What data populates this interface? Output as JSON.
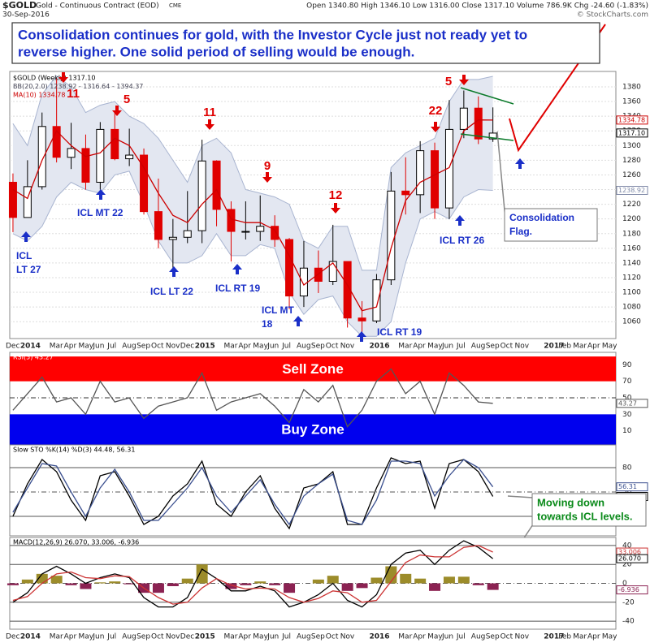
{
  "header": {
    "symbol": "$GOLD",
    "name": "Gold - Continuous Contract (EOD)",
    "exchange": "CME",
    "date": "30-Sep-2016",
    "quote": "Open 1340.80  High 1346.10  Low 1316.00  Close 1317.10  Volume 786.9K  Chg -24.60 (-1.83%)",
    "source": "© StockCharts.com"
  },
  "note": [
    "Consolidation continues for gold, with the Investor Cycle just not ready yet to",
    "reverse higher.  One solid period of selling would be enough."
  ],
  "chart_data": [
    {
      "type": "candlestick",
      "legend": [
        "$GOLD (Weekly) 1317.10",
        "BB(20,2.0) 1238.92 - 1316.64 - 1394.37",
        "MA(10) 1334.78"
      ],
      "categories": [
        "Dec",
        "2014",
        null,
        "Mar",
        "Apr",
        "May",
        "Jun",
        "Jul",
        "Aug",
        "Sep",
        "Oct",
        "Nov",
        "Dec",
        "2015",
        null,
        "Mar",
        "Apr",
        "May",
        "Jun",
        "Jul",
        "Aug",
        "Sep",
        "Oct",
        "Nov",
        null,
        "2016",
        null,
        "Mar",
        "Apr",
        "May",
        "Jun",
        "Jul",
        "Aug",
        "Sep",
        "Oct",
        "Nov",
        null,
        "2017",
        "Feb",
        "Mar",
        "Apr",
        "May"
      ],
      "open": [
        1250,
        1202,
        1244,
        1326,
        1284,
        1296,
        1250,
        1322,
        1282,
        1287,
        1210,
        1172,
        1175,
        1184,
        1279,
        1213,
        1183,
        1183,
        1190,
        1172,
        1095,
        1133,
        1115,
        1142,
        1065,
        1061,
        1117,
        1238,
        1233,
        1293,
        1215,
        1322,
        1351,
        1309,
        null,
        null,
        null,
        null,
        null,
        null,
        null,
        null
      ],
      "high": [
        1262,
        1280,
        1345,
        1392,
        1331,
        1315,
        1332,
        1346,
        1323,
        1296,
        1255,
        1200,
        1238,
        1308,
        1280,
        1224,
        1224,
        1232,
        1205,
        1174,
        1170,
        1157,
        1192,
        1142,
        1088,
        1125,
        1264,
        1284,
        1306,
        1304,
        1362,
        1375,
        1367,
        1352,
        null,
        null,
        null,
        null,
        null,
        null,
        null,
        null
      ],
      "low": [
        1182,
        1202,
        1240,
        1277,
        1268,
        1240,
        1240,
        1280,
        1272,
        1206,
        1160,
        1131,
        1167,
        1167,
        1190,
        1142,
        1172,
        1170,
        1162,
        1077,
        1080,
        1099,
        1110,
        1052,
        1046,
        1058,
        1110,
        1206,
        1208,
        1200,
        1200,
        1310,
        1302,
        1305,
        null,
        null,
        null,
        null,
        null,
        null,
        null,
        null
      ],
      "close": [
        1202,
        1244,
        1326,
        1284,
        1296,
        1250,
        1322,
        1282,
        1287,
        1210,
        1172,
        1175,
        1184,
        1279,
        1213,
        1183,
        1183,
        1190,
        1172,
        1095,
        1133,
        1115,
        1142,
        1065,
        1061,
        1117,
        1238,
        1233,
        1293,
        1215,
        1322,
        1351,
        1309,
        1317,
        null,
        null,
        null,
        null,
        null,
        null,
        null,
        null
      ],
      "up_color": "#000000",
      "down_color": "#e00000",
      "ma": {
        "color": "#cc0000",
        "values": [
          1240,
          1228,
          1280,
          1320,
          1300,
          1285,
          1290,
          1310,
          1300,
          1270,
          1235,
          1205,
          1195,
          1220,
          1240,
          1200,
          1195,
          1195,
          1185,
          1150,
          1110,
          1125,
          1140,
          1110,
          1075,
          1080,
          1160,
          1225,
          1250,
          1260,
          1270,
          1320,
          1335,
          1334.78,
          null,
          null,
          null,
          null,
          null,
          null,
          null,
          null
        ]
      },
      "bb_upper": {
        "color": "#a8b4d0",
        "values": [
          1330,
          1300,
          1370,
          1395,
          1380,
          1345,
          1355,
          1360,
          1340,
          1330,
          1310,
          1280,
          1250,
          1300,
          1310,
          1290,
          1240,
          1235,
          1230,
          1220,
          1170,
          1160,
          1190,
          1190,
          1130,
          1130,
          1270,
          1290,
          1300,
          1310,
          1360,
          1390,
          1390,
          1394.37,
          null,
          null,
          null,
          null,
          null,
          null,
          null,
          null
        ]
      },
      "bb_lower": {
        "color": "#a8b4d0",
        "values": [
          1180,
          1170,
          1190,
          1230,
          1250,
          1240,
          1235,
          1260,
          1265,
          1220,
          1170,
          1140,
          1140,
          1150,
          1180,
          1150,
          1150,
          1165,
          1160,
          1100,
          1070,
          1090,
          1095,
          1060,
          1040,
          1040,
          1060,
          1140,
          1200,
          1210,
          1200,
          1230,
          1240,
          1238.92,
          null,
          null,
          null,
          null,
          null,
          null,
          null,
          null
        ]
      },
      "band_color": "#e3e7f1",
      "tags": [
        {
          "value": 1334.78,
          "color": "#cc0000"
        },
        {
          "value": 1317.1,
          "label": "1317.10",
          "color": "#000000"
        },
        {
          "value": 1238.92,
          "color": "#7f8aa8"
        }
      ],
      "ylim": [
        1037,
        1401
      ],
      "yticks": [
        1060,
        1080,
        1100,
        1120,
        1140,
        1160,
        1180,
        1200,
        1220,
        1240,
        1260,
        1280,
        1300,
        1320,
        1340,
        1360,
        1380
      ],
      "grid": true,
      "peaks": [
        "11",
        "5",
        "11",
        "9",
        "12",
        "22",
        "5"
      ],
      "lows": [
        [
          "ICL",
          "LT 27"
        ],
        [
          "ICL MT 22"
        ],
        [
          "ICL LT 22"
        ],
        [
          "ICL RT 19"
        ],
        [
          "ICL MT",
          "18"
        ],
        [
          "ICL RT 19"
        ],
        [
          "ICL RT 26"
        ]
      ],
      "callout": [
        "Consolidation",
        "Flag."
      ]
    },
    {
      "type": "line",
      "legend": [
        "RSI(5) 43.27"
      ],
      "series": [
        {
          "color": "#555555",
          "values": [
            35,
            55,
            75,
            45,
            50,
            30,
            70,
            45,
            50,
            25,
            40,
            45,
            50,
            80,
            35,
            45,
            50,
            55,
            40,
            20,
            60,
            45,
            65,
            15,
            35,
            70,
            85,
            55,
            70,
            30,
            80,
            65,
            45,
            43.27,
            null,
            null,
            null,
            null,
            null,
            null,
            null,
            null
          ]
        }
      ],
      "zones": [
        {
          "label": "Sell Zone",
          "from": 70,
          "to": 100,
          "color": "#ff0000"
        },
        {
          "label": "Buy Zone",
          "from": -7,
          "to": 30,
          "color": "#0000ee"
        }
      ],
      "tags": [
        {
          "value": 43.27,
          "color": "#555555"
        }
      ],
      "ylim": [
        -7,
        105
      ],
      "yticks": [
        10,
        30,
        50,
        70,
        90
      ],
      "dashed_at": 50
    },
    {
      "type": "line",
      "legend": [
        "Slow STO %K(14) %D(3) 44.48, 56.31"
      ],
      "series": [
        {
          "color": "#000000",
          "values": [
            20,
            60,
            90,
            75,
            40,
            15,
            70,
            75,
            45,
            10,
            20,
            45,
            60,
            88,
            35,
            20,
            50,
            70,
            30,
            5,
            55,
            60,
            75,
            10,
            10,
            55,
            92,
            85,
            88,
            30,
            85,
            90,
            75,
            44.48,
            null,
            null,
            null,
            null,
            null,
            null,
            null,
            null
          ]
        },
        {
          "color": "#3a4f8f",
          "values": [
            25,
            55,
            85,
            82,
            50,
            20,
            55,
            78,
            50,
            15,
            15,
            35,
            55,
            80,
            45,
            25,
            45,
            65,
            35,
            10,
            45,
            60,
            72,
            15,
            10,
            40,
            88,
            88,
            85,
            45,
            70,
            90,
            80,
            56.31,
            null,
            null,
            null,
            null,
            null,
            null,
            null,
            null
          ]
        }
      ],
      "tags": [
        {
          "value": 56.31,
          "color": "#3a4f8f"
        },
        {
          "value": 44.48,
          "color": "#000000"
        }
      ],
      "ylim": [
        -4,
        108
      ],
      "yticks": [
        20,
        50,
        80
      ],
      "dashed_at": 50,
      "callout": [
        "Moving down",
        "towards ICL levels."
      ]
    },
    {
      "type": "line",
      "legend": [
        "MACD(12,26,9) 26.070, 33.006, -6.936"
      ],
      "categories": [
        "Dec",
        "2014",
        null,
        "Mar",
        "Apr",
        "May",
        "Jun",
        "Jul",
        "Aug",
        "Sep",
        "Oct",
        "Nov",
        "Dec",
        "2015",
        null,
        "Mar",
        "Apr",
        "May",
        "Jun",
        "Jul",
        "Aug",
        "Sep",
        "Oct",
        "Nov",
        null,
        "2016",
        null,
        "Mar",
        "Apr",
        "May",
        "Jun",
        "Jul",
        "Aug",
        "Sep",
        "Oct",
        "Nov",
        null,
        "2017",
        "Feb",
        "Mar",
        "Apr",
        "May"
      ],
      "series": [
        {
          "type": "bar",
          "color": "#9c8c2a",
          "negative_color": "#8b2252",
          "values": [
            -2,
            4,
            10,
            8,
            -2,
            -6,
            1,
            2,
            -1,
            -10,
            -10,
            -3,
            5,
            20,
            0,
            -6,
            -2,
            2,
            -2,
            -10,
            0,
            4,
            8,
            -8,
            -5,
            6,
            18,
            10,
            5,
            -8,
            7,
            7,
            -2,
            -6.936,
            null,
            null,
            null,
            null,
            null,
            null,
            null,
            null
          ]
        },
        {
          "color": "#000000",
          "values": [
            -20,
            -10,
            10,
            18,
            10,
            0,
            6,
            10,
            6,
            -15,
            -25,
            -25,
            -15,
            15,
            5,
            -8,
            -8,
            -3,
            -8,
            -25,
            -20,
            -12,
            0,
            -18,
            -25,
            -12,
            20,
            32,
            35,
            20,
            35,
            45,
            38,
            26.07,
            null,
            null,
            null,
            null,
            null,
            null,
            null,
            null
          ]
        },
        {
          "color": "#cc3333",
          "values": [
            -18,
            -14,
            0,
            10,
            12,
            6,
            5,
            8,
            7,
            -5,
            -15,
            -22,
            -20,
            -5,
            5,
            -2,
            -6,
            -5,
            -6,
            -15,
            -20,
            -16,
            -8,
            -10,
            -20,
            -18,
            2,
            22,
            30,
            28,
            28,
            38,
            40,
            33.006,
            null,
            null,
            null,
            null,
            null,
            null,
            null,
            null
          ]
        }
      ],
      "tags": [
        {
          "value": 33.006,
          "color": "#cc3333"
        },
        {
          "value": 26.07,
          "label": "26.070",
          "color": "#000000"
        },
        {
          "value": -6.936,
          "color": "#8b2252"
        }
      ],
      "ylim": [
        -48.5,
        48.5
      ],
      "yticks": [
        -40,
        -20,
        0,
        20,
        40
      ],
      "dashed_at": 0
    }
  ]
}
